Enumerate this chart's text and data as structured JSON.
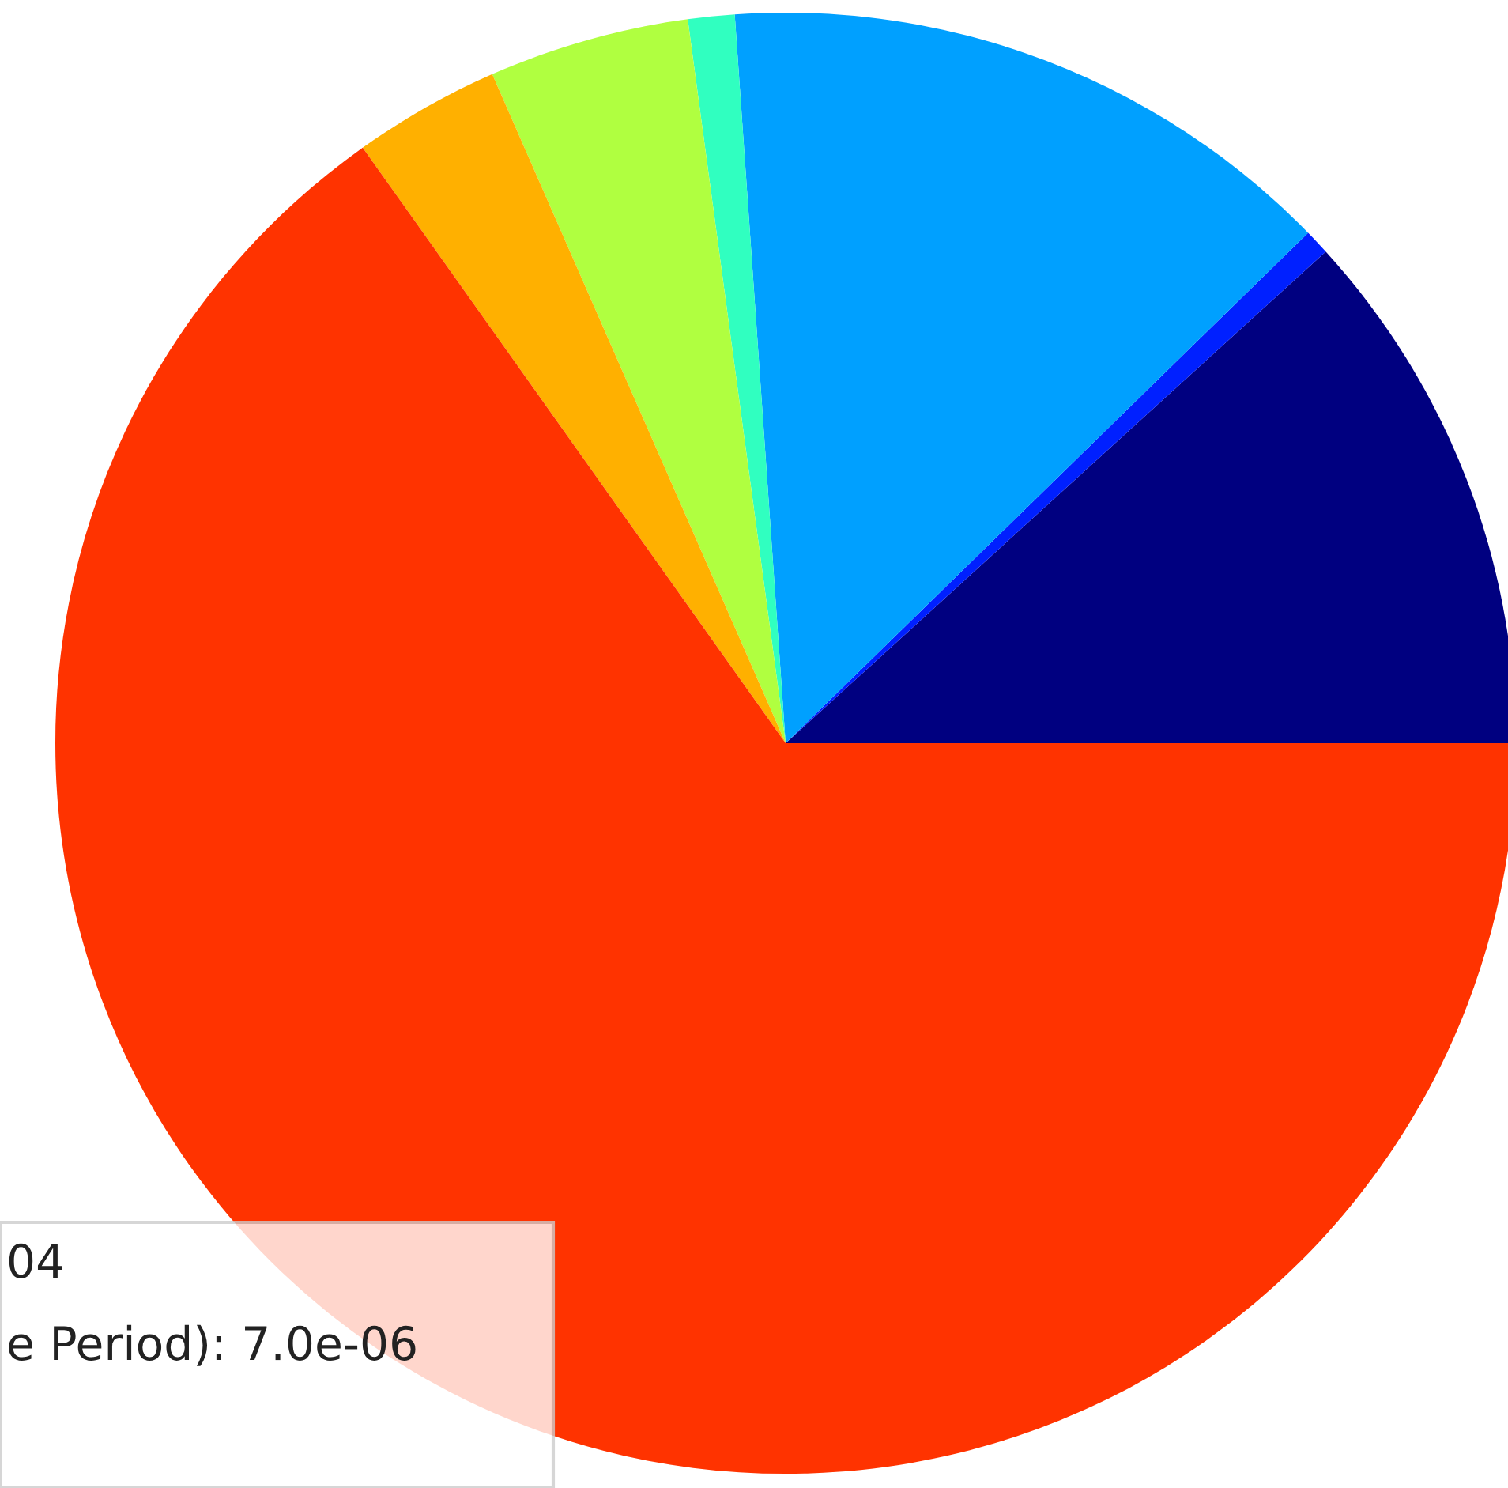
{
  "chart_data": {
    "type": "pie",
    "categories": [
      null,
      null,
      null,
      null,
      null,
      null,
      null
    ],
    "values": [
      11.75,
      0.56,
      13.8,
      1.03,
      4.44,
      3.25,
      65.17
    ],
    "colors": [
      "#000080",
      "#0020ff",
      "#00a0ff",
      "#30ffc0",
      "#b0ff40",
      "#ffb000",
      "#ff3300"
    ],
    "annotations": [
      "04",
      "e Period): 7.0e-06"
    ]
  }
}
